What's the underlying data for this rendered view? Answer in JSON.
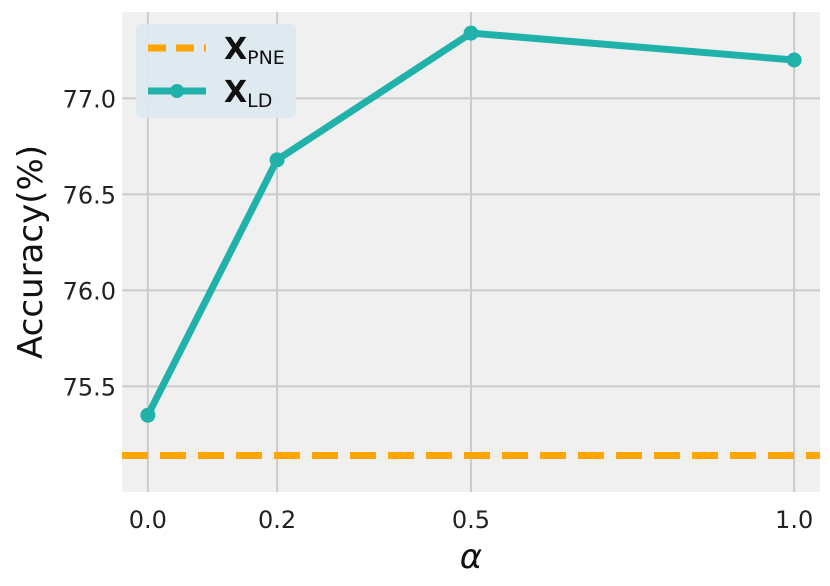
{
  "chart_data": {
    "type": "line",
    "xlabel": "α",
    "ylabel": "Accuracy(%)",
    "x": [
      0.0,
      0.2,
      0.5,
      1.0
    ],
    "x_ticks": [
      "0.0",
      "0.2",
      "0.5",
      "1.0"
    ],
    "y_ticks": [
      "75.5",
      "76.0",
      "76.5",
      "77.0"
    ],
    "y_tick_values": [
      75.5,
      76.0,
      76.5,
      77.0
    ],
    "xlim": [
      -0.04,
      1.04
    ],
    "ylim": [
      74.95,
      77.45
    ],
    "grid": true,
    "legend_position": "top-left",
    "series": [
      {
        "name_main": "X",
        "name_sub": "LD",
        "style": "solid-marker",
        "color": "#20b2aa",
        "values": [
          75.35,
          76.68,
          77.34,
          77.2
        ]
      }
    ],
    "baseline": {
      "name_main": "X",
      "name_sub": "PNE",
      "style": "dashed",
      "color": "#ffa500",
      "value": 75.14
    }
  }
}
